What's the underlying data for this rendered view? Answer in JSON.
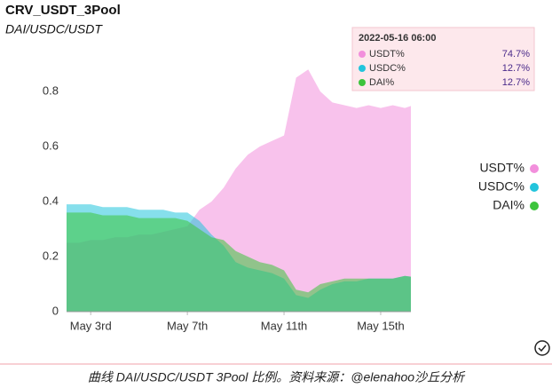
{
  "chart_data": {
    "type": "area",
    "title": "CRV_USDT_3Pool",
    "subtitle": "DAI/USDC/USDT",
    "x": [
      "2022-05-02 00:00",
      "2022-05-02 12:00",
      "2022-05-03 00:00",
      "2022-05-03 12:00",
      "2022-05-04 00:00",
      "2022-05-04 12:00",
      "2022-05-05 00:00",
      "2022-05-05 12:00",
      "2022-05-06 00:00",
      "2022-05-06 12:00",
      "2022-05-07 00:00",
      "2022-05-07 12:00",
      "2022-05-08 00:00",
      "2022-05-08 12:00",
      "2022-05-09 00:00",
      "2022-05-09 12:00",
      "2022-05-10 00:00",
      "2022-05-10 12:00",
      "2022-05-11 00:00",
      "2022-05-11 12:00",
      "2022-05-12 00:00",
      "2022-05-12 12:00",
      "2022-05-13 00:00",
      "2022-05-13 12:00",
      "2022-05-14 00:00",
      "2022-05-14 12:00",
      "2022-05-15 00:00",
      "2022-05-15 12:00",
      "2022-05-16 00:00",
      "2022-05-16 06:00"
    ],
    "series": [
      {
        "name": "USDT%",
        "color": "#f28fdc",
        "values": [
          0.25,
          0.25,
          0.26,
          0.26,
          0.27,
          0.27,
          0.28,
          0.28,
          0.29,
          0.3,
          0.31,
          0.37,
          0.4,
          0.45,
          0.52,
          0.57,
          0.6,
          0.62,
          0.64,
          0.85,
          0.88,
          0.8,
          0.76,
          0.75,
          0.74,
          0.75,
          0.74,
          0.75,
          0.74,
          0.747
        ]
      },
      {
        "name": "USDC%",
        "color": "#22c4dc",
        "values": [
          0.39,
          0.39,
          0.39,
          0.38,
          0.38,
          0.38,
          0.37,
          0.37,
          0.37,
          0.36,
          0.36,
          0.33,
          0.28,
          0.24,
          0.18,
          0.16,
          0.15,
          0.14,
          0.12,
          0.06,
          0.05,
          0.08,
          0.1,
          0.11,
          0.11,
          0.12,
          0.12,
          0.12,
          0.13,
          0.127
        ]
      },
      {
        "name": "DAI%",
        "color": "#3cc43c",
        "values": [
          0.36,
          0.36,
          0.36,
          0.35,
          0.35,
          0.35,
          0.34,
          0.34,
          0.34,
          0.34,
          0.33,
          0.3,
          0.27,
          0.26,
          0.22,
          0.2,
          0.18,
          0.17,
          0.15,
          0.08,
          0.07,
          0.1,
          0.11,
          0.12,
          0.12,
          0.12,
          0.12,
          0.12,
          0.13,
          0.127
        ]
      }
    ],
    "xlim": [
      "2022-05-02 00:00",
      "2022-05-16 06:00"
    ],
    "xticks": [
      {
        "value": "2022-05-03 00:00",
        "label": "May 3rd"
      },
      {
        "value": "2022-05-07 00:00",
        "label": "May 7th"
      },
      {
        "value": "2022-05-11 00:00",
        "label": "May 11th"
      },
      {
        "value": "2022-05-15 00:00",
        "label": "May 15th"
      }
    ],
    "ylim": [
      0,
      0.9
    ],
    "yticks": [
      0,
      0.2,
      0.4,
      0.6,
      0.8
    ],
    "grid": false,
    "legend": "right",
    "tooltip": {
      "values": [
        0.747,
        0.127,
        0.127
      ],
      "value_labels": [
        "74.7%",
        "12.7%",
        "12.7%"
      ]
    }
  },
  "caption": "曲线 DAI/USDC/USDT 3Pool 比例。资料来源：@elenahoo沙丘分析"
}
